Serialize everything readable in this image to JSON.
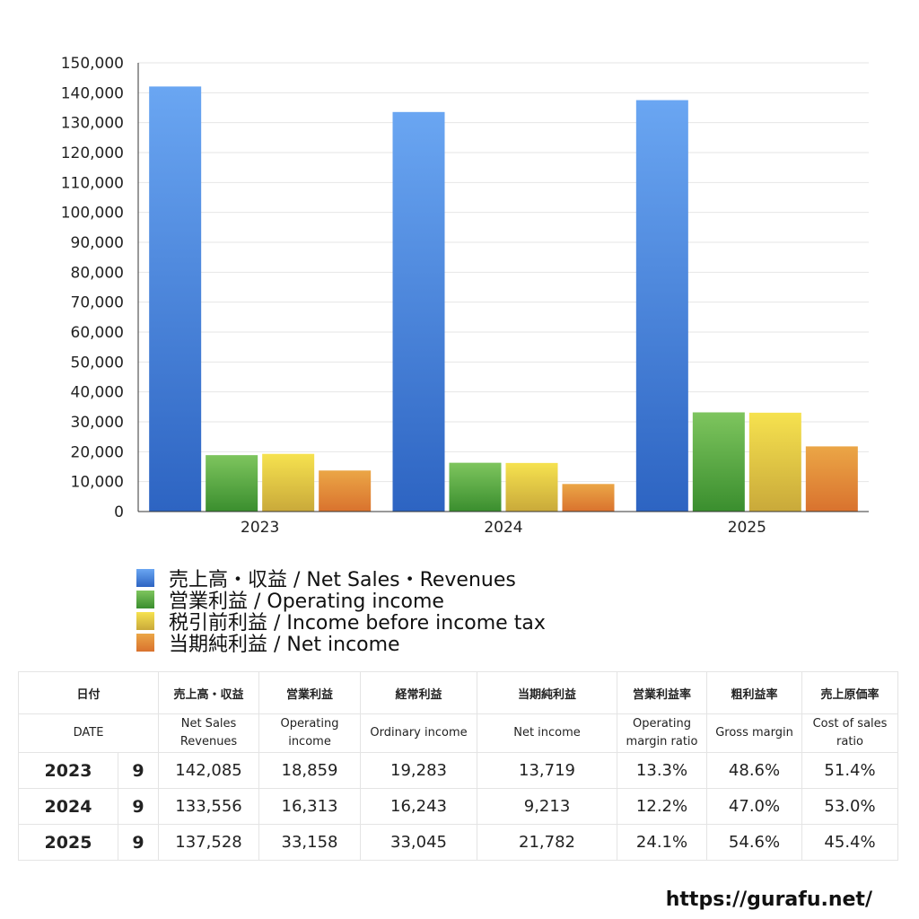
{
  "chart_data": {
    "type": "bar",
    "categories": [
      "2023",
      "2024",
      "2025"
    ],
    "series": [
      {
        "name": "売上高・収益 / Net Sales・Revenues",
        "values": [
          142085,
          133556,
          137528
        ],
        "color_top": "#6aa6f2",
        "color_bottom": "#2d64c2"
      },
      {
        "name": "営業利益 / Operating income",
        "values": [
          18859,
          16313,
          33158
        ],
        "color_top": "#7ec55e",
        "color_bottom": "#3a8e2e"
      },
      {
        "name": "税引前利益 / Income before income tax",
        "values": [
          19283,
          16243,
          33045
        ],
        "color_top": "#f6e24f",
        "color_bottom": "#c9a93a"
      },
      {
        "name": "当期純利益 / Net income",
        "values": [
          13719,
          9213,
          21782
        ],
        "color_top": "#eba646",
        "color_bottom": "#d9722e"
      }
    ],
    "yticks": [
      "0",
      "10,000",
      "20,000",
      "30,000",
      "40,000",
      "50,000",
      "60,000",
      "70,000",
      "80,000",
      "90,000",
      "100,000",
      "110,000",
      "120,000",
      "130,000",
      "140,000",
      "150,000"
    ],
    "ylim": [
      0,
      150000
    ],
    "grid": true,
    "legend": "bottom-left"
  },
  "table": {
    "headers_jp": [
      "日付",
      "売上高・収益",
      "営業利益",
      "経常利益",
      "当期純利益",
      "営業利益率",
      "粗利益率",
      "売上原価率"
    ],
    "headers_en": [
      "DATE",
      "Net Sales Revenues",
      "Operating income",
      "Ordinary income",
      "Net income",
      "Operating margin ratio",
      "Gross margin",
      "Cost of sales ratio"
    ],
    "rows": [
      {
        "year": "2023",
        "month": "9",
        "cells": [
          "142,085",
          "18,859",
          "19,283",
          "13,719",
          "13.3%",
          "48.6%",
          "51.4%"
        ]
      },
      {
        "year": "2024",
        "month": "9",
        "cells": [
          "133,556",
          "16,313",
          "16,243",
          "9,213",
          "12.2%",
          "47.0%",
          "53.0%"
        ]
      },
      {
        "year": "2025",
        "month": "9",
        "cells": [
          "137,528",
          "33,158",
          "33,045",
          "21,782",
          "24.1%",
          "54.6%",
          "45.4%"
        ]
      }
    ]
  },
  "footer": {
    "url": "https://gurafu.net/"
  }
}
